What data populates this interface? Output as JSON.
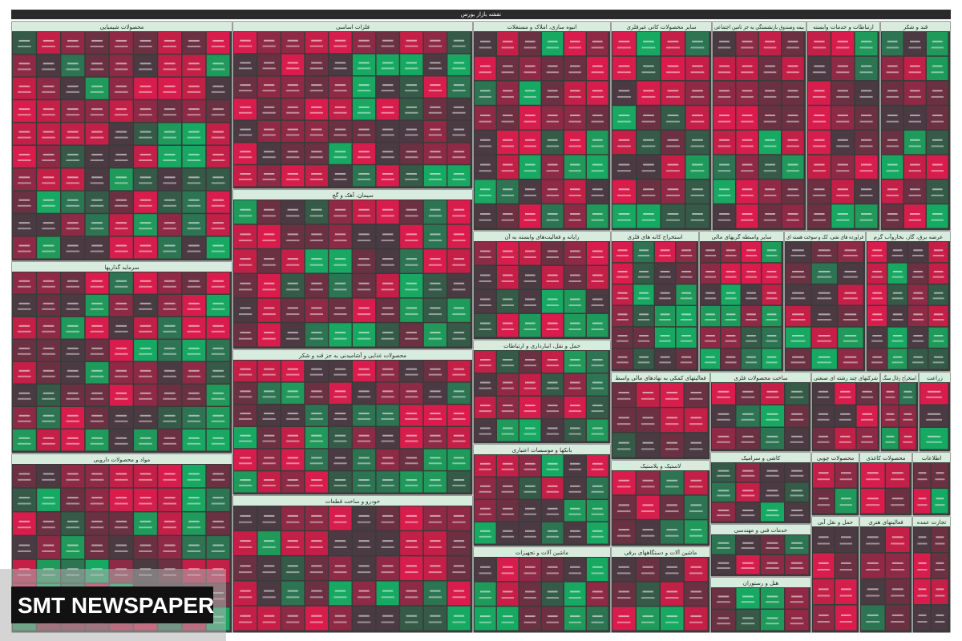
{
  "header": {
    "title": "نقشه بازار بورس"
  },
  "sectors": [
    {
      "name": "محصولات شیمیایی"
    },
    {
      "name": "فلزات اساسی"
    },
    {
      "name": "انبوه سازی، املاک و مستغلات"
    },
    {
      "name": "سایر محصولات کانی غیرفلزی"
    },
    {
      "name": "بیمه وصندوق بازنشستگی به جز تامین اجتماعی"
    },
    {
      "name": "ارتباطات و خدمات وابسته"
    },
    {
      "name": "قند و شکر"
    },
    {
      "name": "سرمایه گذاریها"
    },
    {
      "name": "مواد و محصولات دارویی"
    },
    {
      "name": "سیمان، آهک و گچ"
    },
    {
      "name": "محصولات غذایی و آشامیدنی به جز قند و شکر"
    },
    {
      "name": "خودرو و ساخت قطعات"
    },
    {
      "name": "رایانه و فعالیت‌های وابسته به آن"
    },
    {
      "name": "حمل و نقل، انبارداری و ارتباطات"
    },
    {
      "name": "بانکها و موسسات اعتباری"
    },
    {
      "name": "ماشین آلات و تجهیزات"
    },
    {
      "name": "استخراج کانه های فلزی"
    },
    {
      "name": "سایر واسطه گریهای مالی"
    },
    {
      "name": "فراورده های نفتی، کک و سوخت هسته ای"
    },
    {
      "name": "عرضه برق، گاز، بخاروآب گرم"
    },
    {
      "name": "فعالیتهای کمکی به نهادهای مالی واسط"
    },
    {
      "name": "ساخت محصولات فلزی"
    },
    {
      "name": "شرکتهای چند رشته ای صنعتی"
    },
    {
      "name": "استخراج زغال سنگ"
    },
    {
      "name": "زراعت"
    },
    {
      "name": "لاستیک و پلاستیک"
    },
    {
      "name": "کاشی و سرامیک"
    },
    {
      "name": "محصولات چوبی"
    },
    {
      "name": "محصولات کاغذی"
    },
    {
      "name": "اطلاعات"
    },
    {
      "name": "ماشین آلات و دستگاههای برقی"
    },
    {
      "name": "خدمات فنی و مهندسی"
    },
    {
      "name": "هتل و رستوران"
    },
    {
      "name": "حمل و نقل آبی"
    },
    {
      "name": "فعالیتهای هنری"
    },
    {
      "name": "تجارت عمده"
    }
  ],
  "watermark": {
    "text": "SMT NEWSPAPER"
  }
}
